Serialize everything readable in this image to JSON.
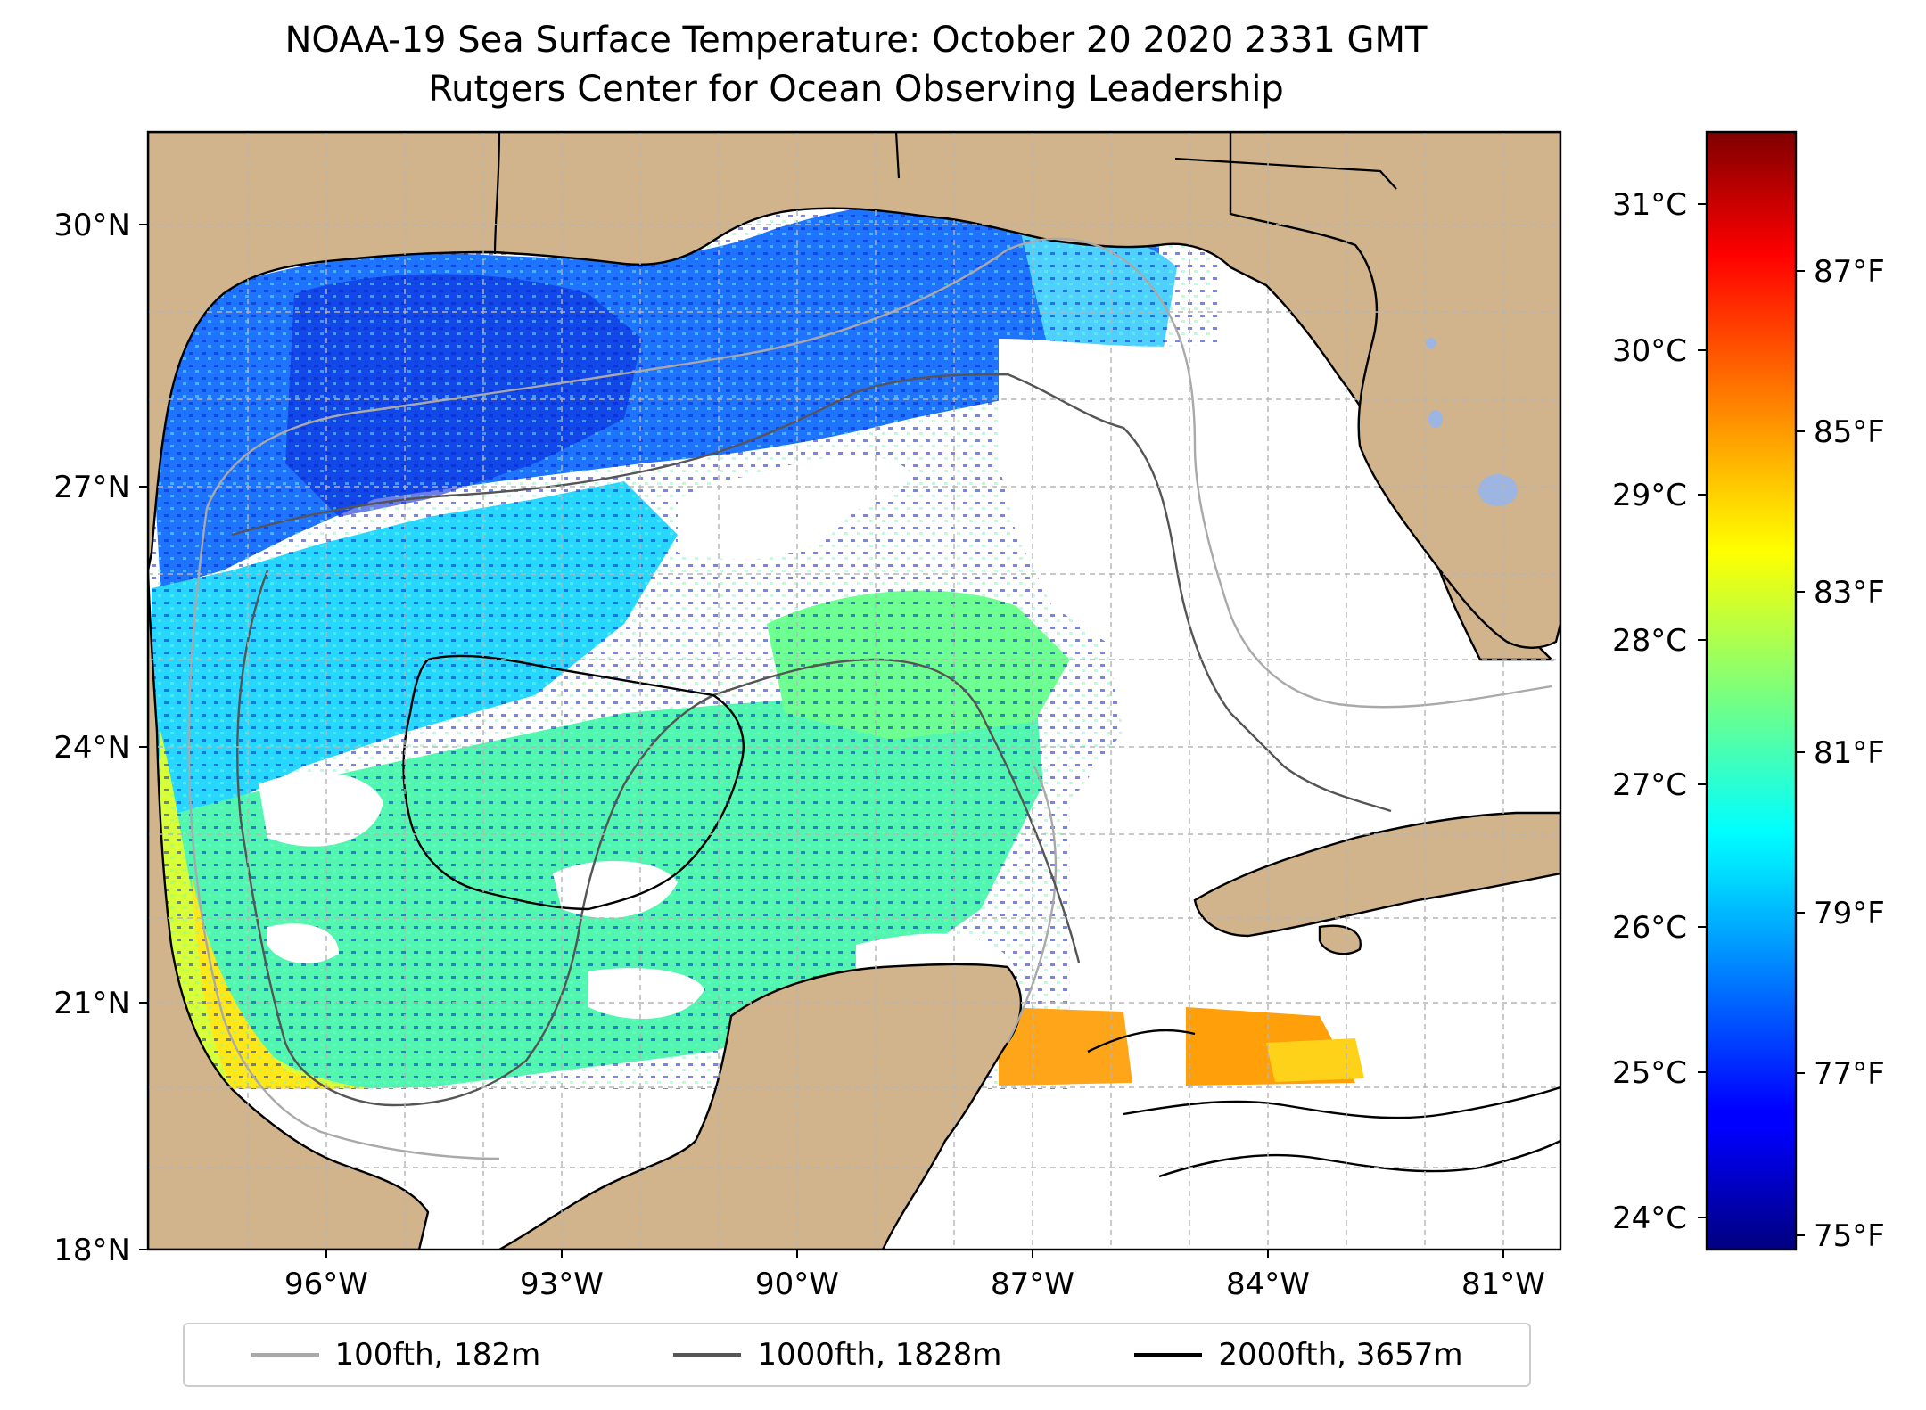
{
  "title": "NOAA-19 Sea Surface Temperature: October 20 2020 2331 GMT",
  "subtitle": "Rutgers Center for Ocean Observing Leadership",
  "map": {
    "lat_labels": [
      "30°N",
      "27°N",
      "24°N",
      "21°N",
      "18°N"
    ],
    "lon_labels": [
      "96°W",
      "93°W",
      "90°W",
      "87°W",
      "84°W",
      "81°W"
    ],
    "land_color": "#d2b48c",
    "lake_color": "#9db5e2",
    "extent": {
      "lon": [
        -98.2,
        -80.5
      ],
      "lat": [
        18,
        31
      ]
    }
  },
  "colorbar": {
    "colormap": "jet",
    "celsius_labels": [
      "31°C",
      "30°C",
      "29°C",
      "28°C",
      "27°C",
      "26°C",
      "25°C",
      "24°C"
    ],
    "fahrenheit_labels": [
      "87°F",
      "85°F",
      "83°F",
      "81°F",
      "79°F",
      "77°F",
      "75°F"
    ]
  },
  "legend": [
    {
      "label": "100fth, 182m",
      "color": "#a9a9a9"
    },
    {
      "label": "1000fth, 1828m",
      "color": "#555555"
    },
    {
      "label": "2000fth, 3657m",
      "color": "#000000"
    }
  ]
}
